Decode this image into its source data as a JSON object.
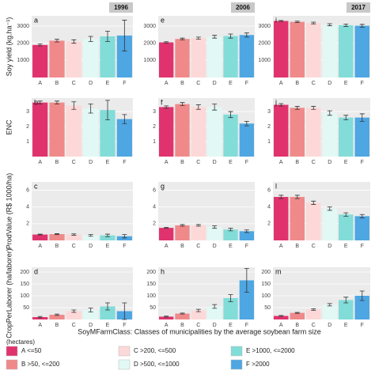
{
  "column_labels": [
    "1996",
    "2006",
    "2017"
  ],
  "row_labels": [
    "Soy yield (kg.ha⁻¹)",
    "ENC",
    "ProdValue (R$ 1000/ha)",
    "CropPerLaborer (ha/laborer)"
  ],
  "xlabel": "SoyMFarmClass: Classes of municipalities by the average soybean farm size",
  "legend": {
    "title": "(hectares)",
    "entries": [
      {
        "name": "A <=50",
        "color": "#e0336e"
      },
      {
        "name": "B >50, <=200",
        "color": "#f08a8a"
      },
      {
        "name": "C >200, <=500",
        "color": "#fdd8d8"
      },
      {
        "name": "D >500, <=1000",
        "color": "#e2f8f5"
      },
      {
        "name": "E >1000, <=2000",
        "color": "#82dcd8"
      },
      {
        "name": "F >2000",
        "color": "#4ea6e2"
      }
    ]
  },
  "chart_data": [
    {
      "type": "bar",
      "title": "a",
      "categories": [
        "A",
        "B",
        "C",
        "D",
        "E",
        "F"
      ],
      "values": [
        1900,
        2150,
        2100,
        2250,
        2400,
        2450
      ],
      "errors": [
        60,
        80,
        100,
        150,
        300,
        900
      ],
      "ylim": [
        0,
        3600
      ],
      "yticks": [
        1000,
        2000,
        3000
      ]
    },
    {
      "type": "bar",
      "title": "e",
      "categories": [
        "A",
        "B",
        "C",
        "D",
        "E",
        "F"
      ],
      "values": [
        2050,
        2250,
        2300,
        2380,
        2420,
        2480
      ],
      "errors": [
        40,
        50,
        60,
        80,
        120,
        120
      ],
      "ylim": [
        0,
        3600
      ],
      "yticks": [
        1000,
        2000,
        3000
      ]
    },
    {
      "type": "bar",
      "title": "i",
      "categories": [
        "A",
        "B",
        "C",
        "D",
        "E",
        "F"
      ],
      "values": [
        3300,
        3250,
        3180,
        3080,
        3050,
        3020
      ],
      "errors": [
        30,
        40,
        50,
        60,
        70,
        80
      ],
      "ylim": [
        0,
        3600
      ],
      "yticks": [
        1000,
        2000,
        3000
      ]
    },
    {
      "type": "bar",
      "title": "b",
      "categories": [
        "A",
        "B",
        "C",
        "D",
        "E",
        "F"
      ],
      "values": [
        3.6,
        3.6,
        3.4,
        3.2,
        3.1,
        2.5
      ],
      "errors": [
        0.1,
        0.1,
        0.25,
        0.3,
        0.65,
        0.3
      ],
      "ylim": [
        0,
        3.9
      ],
      "yticks": [
        1,
        2,
        3
      ]
    },
    {
      "type": "bar",
      "title": "f",
      "categories": [
        "A",
        "B",
        "C",
        "D",
        "E",
        "F"
      ],
      "values": [
        3.3,
        3.5,
        3.3,
        3.3,
        2.8,
        2.2
      ],
      "errors": [
        0.08,
        0.1,
        0.15,
        0.2,
        0.2,
        0.15
      ],
      "ylim": [
        0,
        3.9
      ],
      "yticks": [
        1,
        2,
        3
      ]
    },
    {
      "type": "bar",
      "title": "j",
      "categories": [
        "A",
        "B",
        "C",
        "D",
        "E",
        "F"
      ],
      "values": [
        3.45,
        3.25,
        3.25,
        2.9,
        2.6,
        2.6
      ],
      "errors": [
        0.08,
        0.1,
        0.1,
        0.15,
        0.15,
        0.25
      ],
      "ylim": [
        0,
        3.9
      ],
      "yticks": [
        1,
        2,
        3
      ]
    },
    {
      "type": "bar",
      "title": "c",
      "categories": [
        "A",
        "B",
        "C",
        "D",
        "E",
        "F"
      ],
      "values": [
        0.7,
        0.75,
        0.7,
        0.6,
        0.6,
        0.5
      ],
      "errors": [
        0.05,
        0.06,
        0.08,
        0.1,
        0.15,
        0.2
      ],
      "ylim": [
        0,
        7
      ],
      "yticks": [
        2,
        4,
        6
      ]
    },
    {
      "type": "bar",
      "title": "g",
      "categories": [
        "A",
        "B",
        "C",
        "D",
        "E",
        "F"
      ],
      "values": [
        1.5,
        1.8,
        1.8,
        1.6,
        1.3,
        1.1
      ],
      "errors": [
        0.05,
        0.1,
        0.1,
        0.15,
        0.15,
        0.15
      ],
      "ylim": [
        0,
        7
      ],
      "yticks": [
        2,
        4,
        6
      ]
    },
    {
      "type": "bar",
      "title": "l",
      "categories": [
        "A",
        "B",
        "C",
        "D",
        "E",
        "F"
      ],
      "values": [
        5.2,
        5.2,
        4.5,
        3.8,
        3.1,
        2.9
      ],
      "errors": [
        0.2,
        0.2,
        0.2,
        0.2,
        0.2,
        0.2
      ],
      "ylim": [
        0,
        7
      ],
      "yticks": [
        2,
        4,
        6
      ]
    },
    {
      "type": "bar",
      "title": "d",
      "categories": [
        "A",
        "B",
        "C",
        "D",
        "E",
        "F"
      ],
      "values": [
        10,
        20,
        35,
        40,
        55,
        35
      ],
      "errors": [
        3,
        3,
        5,
        8,
        15,
        35
      ],
      "ylim": [
        0,
        220
      ],
      "yticks": [
        50,
        100,
        150,
        200
      ]
    },
    {
      "type": "bar",
      "title": "h",
      "categories": [
        "A",
        "B",
        "C",
        "D",
        "E",
        "F"
      ],
      "values": [
        12,
        25,
        38,
        55,
        90,
        165
      ],
      "errors": [
        2,
        2,
        5,
        8,
        15,
        50
      ],
      "ylim": [
        0,
        220
      ],
      "yticks": [
        50,
        100,
        150,
        200
      ]
    },
    {
      "type": "bar",
      "title": "m",
      "categories": [
        "A",
        "B",
        "C",
        "D",
        "E",
        "F"
      ],
      "values": [
        15,
        28,
        42,
        62,
        82,
        100
      ],
      "errors": [
        2,
        2,
        3,
        5,
        12,
        20
      ],
      "ylim": [
        0,
        220
      ],
      "yticks": [
        50,
        100,
        150,
        200
      ]
    }
  ]
}
